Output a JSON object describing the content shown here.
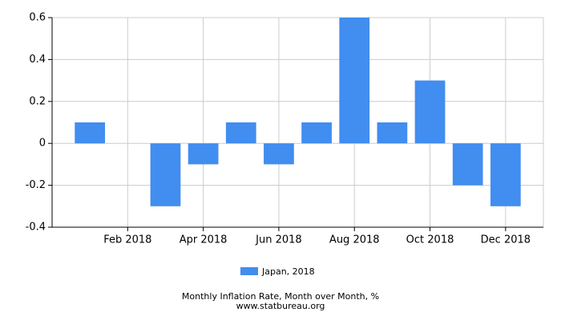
{
  "chart_data": {
    "type": "bar",
    "title": "Monthly Inflation Rate, Month over Month, %",
    "source": "www.statbureau.org",
    "categories": [
      null,
      "Feb 2018",
      null,
      "Apr 2018",
      null,
      "Jun 2018",
      null,
      "Aug 2018",
      null,
      "Oct 2018",
      null,
      "Dec 2018"
    ],
    "series": [
      {
        "name": "Japan, 2018",
        "color": "#418df0",
        "values": [
          0.1,
          0,
          -0.3,
          -0.1,
          0.1,
          -0.1,
          0.1,
          0.6,
          0.1,
          0.3,
          -0.2,
          -0.3
        ]
      }
    ],
    "ylim": [
      -0.4,
      0.6
    ],
    "yticks": [
      -0.4,
      -0.2,
      0,
      0.2,
      0.4,
      0.6
    ],
    "grid": true
  }
}
